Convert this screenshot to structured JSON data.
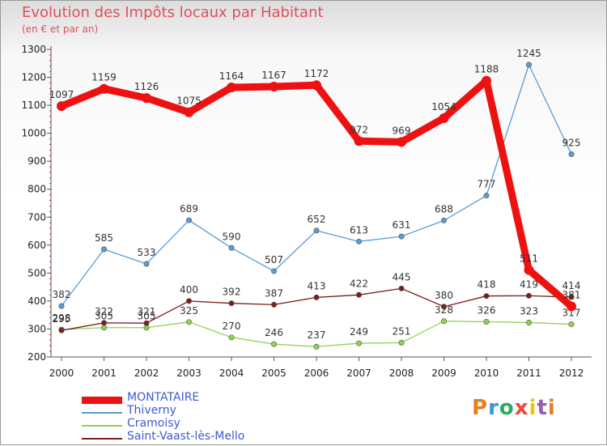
{
  "header": {
    "title": "Evolution des Impôts locaux par Habitant",
    "subtitle": "(en € et par an)"
  },
  "logo": {
    "text": "Proxiti"
  },
  "chart_data": {
    "type": "line",
    "title": "Evolution des Impôts locaux par Habitant",
    "subtitle": "(en € et par an)",
    "xlabel": "",
    "ylabel": "",
    "ylim": [
      200,
      1300
    ],
    "yticks": [
      200,
      300,
      400,
      500,
      600,
      700,
      800,
      900,
      1000,
      1100,
      1200,
      1300
    ],
    "categories": [
      "2000",
      "2001",
      "2002",
      "2003",
      "2004",
      "2005",
      "2006",
      "2007",
      "2008",
      "2009",
      "2010",
      "2011",
      "2012"
    ],
    "legend_position": "bottom-left",
    "series": [
      {
        "name": "Thiverny",
        "color": "#5b9bd5",
        "values": [
          382,
          585,
          533,
          689,
          590,
          507,
          652,
          613,
          631,
          688,
          777,
          1245,
          925
        ]
      },
      {
        "name": "Cramoisy",
        "color": "#8fd14f",
        "values": [
          298,
          305,
          305,
          325,
          270,
          246,
          237,
          249,
          251,
          328,
          326,
          323,
          317
        ]
      },
      {
        "name": "Saint-Vaast-lès-Mello",
        "color": "#7b1e1e",
        "values": [
          295,
          322,
          321,
          400,
          392,
          387,
          413,
          422,
          445,
          380,
          418,
          419,
          414
        ]
      },
      {
        "name": "MONTATAIRE",
        "color": "#ee1111",
        "values": [
          1097,
          1159,
          1126,
          1075,
          1164,
          1167,
          1172,
          972,
          969,
          1054,
          1188,
          511,
          381
        ]
      }
    ],
    "legend_order": [
      "MONTATAIRE",
      "Thiverny",
      "Cramoisy",
      "Saint-Vaast-lès-Mello"
    ]
  }
}
